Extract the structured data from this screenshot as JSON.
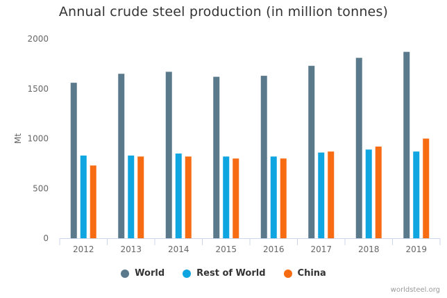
{
  "chart_data": {
    "type": "bar",
    "title": "Annual crude steel production (in million tonnes)",
    "ylabel": "Mt",
    "xlabel": "",
    "ylim": [
      0,
      2000
    ],
    "yticks": [
      0,
      500,
      1000,
      1500,
      2000
    ],
    "categories": [
      "2012",
      "2013",
      "2014",
      "2015",
      "2016",
      "2017",
      "2018",
      "2019"
    ],
    "series": [
      {
        "name": "World",
        "color": "#5a7a8c",
        "values": [
          1560,
          1650,
          1670,
          1620,
          1630,
          1730,
          1810,
          1870
        ]
      },
      {
        "name": "Rest of World",
        "color": "#0ea5e0",
        "values": [
          830,
          830,
          850,
          820,
          820,
          860,
          890,
          870
        ]
      },
      {
        "name": "China",
        "color": "#f76b12",
        "values": [
          730,
          820,
          820,
          800,
          800,
          870,
          920,
          1000
        ]
      }
    ],
    "grid": false,
    "legend_position": "bottom-center"
  },
  "credit": "worldsteel.org"
}
